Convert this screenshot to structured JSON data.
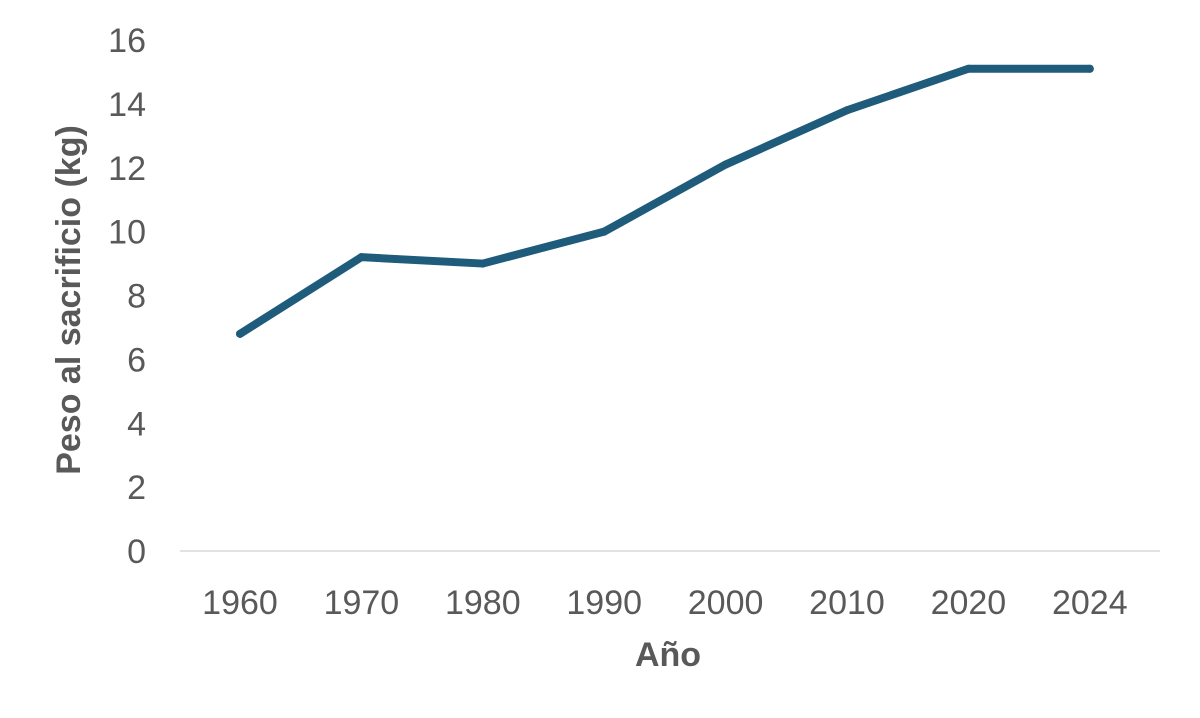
{
  "chart_data": {
    "type": "line",
    "title": "",
    "xlabel": "Año",
    "ylabel": "Peso al sacrificio (kg)",
    "categories": [
      "1960",
      "1970",
      "1980",
      "1990",
      "2000",
      "2010",
      "2020",
      "2024"
    ],
    "series": [
      {
        "values": [
          6.8,
          9.2,
          9.0,
          10.0,
          12.1,
          13.8,
          15.1,
          15.1
        ]
      }
    ],
    "ylim": [
      0,
      16
    ],
    "yticks": [
      "0",
      "2",
      "4",
      "6",
      "8",
      "10",
      "12",
      "14",
      "16"
    ],
    "grid": false,
    "legend": "none",
    "colors": {
      "line": "#1F5B7A",
      "axis": "#D9D9D9",
      "text": "#595959"
    }
  }
}
